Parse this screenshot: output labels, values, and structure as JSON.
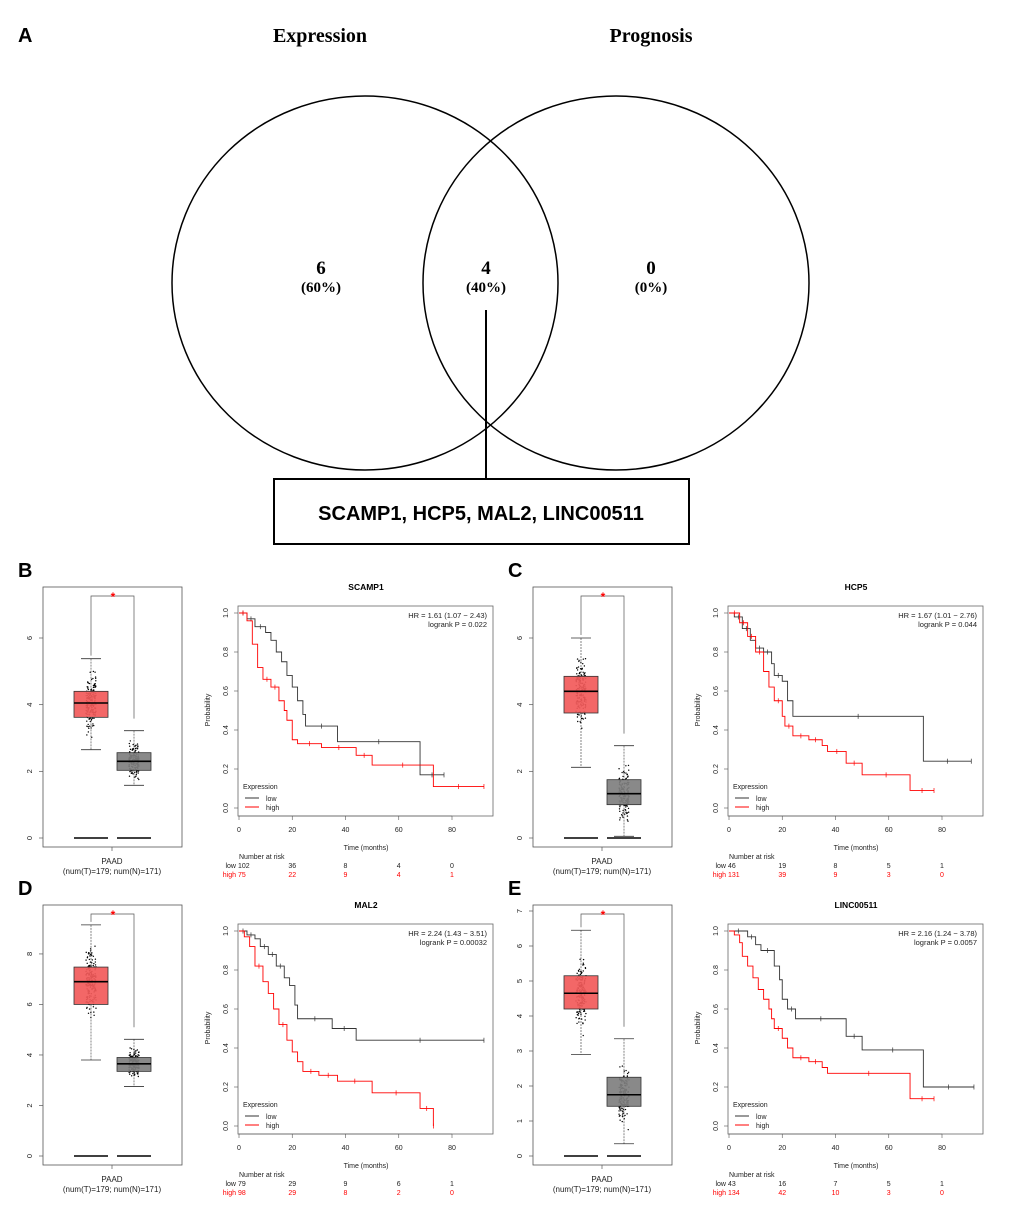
{
  "panel_labels": {
    "a": "A",
    "b": "B",
    "c": "C",
    "d": "D",
    "e": "E"
  },
  "venn": {
    "set_labels": [
      "Expression",
      "Prognosis"
    ],
    "regions": [
      {
        "count": "6",
        "percent": "(60%)"
      },
      {
        "count": "4",
        "percent": "(40%)"
      },
      {
        "count": "0",
        "percent": "(0%)"
      }
    ],
    "intersection_genes": "SCAMP1, HCP5, MAL2, LINC00511"
  },
  "colors": {
    "tumor": "#f25a5a",
    "normal": "#7f7f7f",
    "high": "#ff0000",
    "low": "#333333",
    "significance": "#ff0000"
  },
  "chart_data": [
    {
      "panel": "B",
      "boxplot": {
        "type": "box",
        "category": "PAAD",
        "sample_sizes": "(num(T)=179; num(N)=171)",
        "significance": "*",
        "ylim": [
          0,
          7.35
        ],
        "yticks": [
          "0",
          "2",
          "4",
          "6"
        ],
        "tumor": {
          "q1": 3.62,
          "median": 4.05,
          "q3": 4.4,
          "whisker_low": 2.65,
          "whisker_high": 5.38,
          "n": 179
        },
        "normal": {
          "q1": 2.03,
          "median": 2.3,
          "q3": 2.56,
          "whisker_low": 1.58,
          "whisker_high": 3.22,
          "n": 171
        }
      },
      "km": {
        "type": "line",
        "title": "SCAMP1",
        "hr": "HR = 1.61 (1.07 − 2.43)",
        "logrank": "logrank P = 0.022",
        "xlabel": "Time (months)",
        "ylabel": "Probability",
        "xlim": [
          0,
          95
        ],
        "ylim": [
          0,
          1
        ],
        "xticks": [
          "0",
          "20",
          "40",
          "60",
          "80"
        ],
        "yticks": [
          "0.0",
          "0.2",
          "0.4",
          "0.6",
          "0.8",
          "1.0"
        ],
        "legend_title": "Expression",
        "legend": [
          "low",
          "high"
        ],
        "low": {
          "steps": [
            [
              0,
              1
            ],
            [
              3,
              0.97
            ],
            [
              6,
              0.93
            ],
            [
              10,
              0.9
            ],
            [
              12,
              0.86
            ],
            [
              14,
              0.8
            ],
            [
              16,
              0.75
            ],
            [
              18,
              0.68
            ],
            [
              20,
              0.62
            ],
            [
              22,
              0.55
            ],
            [
              24,
              0.48
            ],
            [
              25,
              0.42
            ],
            [
              37,
              0.34
            ],
            [
              68,
              0.17
            ]
          ],
          "end": 77
        },
        "high": {
          "steps": [
            [
              0,
              1
            ],
            [
              3,
              0.96
            ],
            [
              5,
              0.84
            ],
            [
              7,
              0.72
            ],
            [
              9,
              0.66
            ],
            [
              12,
              0.62
            ],
            [
              15,
              0.55
            ],
            [
              17,
              0.5
            ],
            [
              18,
              0.45
            ],
            [
              20,
              0.35
            ],
            [
              22,
              0.33
            ],
            [
              31,
              0.31
            ],
            [
              44,
              0.27
            ],
            [
              50,
              0.22
            ],
            [
              73,
              0.11
            ]
          ],
          "end": 92
        },
        "risk_title": "Number at risk",
        "risk_labels": [
          "low",
          "high"
        ],
        "risk_low": [
          "102",
          "36",
          "8",
          "4",
          "0"
        ],
        "risk_high": [
          "75",
          "22",
          "9",
          "4",
          "1"
        ]
      }
    },
    {
      "panel": "C",
      "boxplot": {
        "type": "box",
        "category": "PAAD",
        "sample_sizes": "(num(T)=179; num(N)=171)",
        "significance": "*",
        "ylim": [
          0,
          7.35
        ],
        "yticks": [
          "0",
          "2",
          "4",
          "6"
        ],
        "tumor": {
          "q1": 3.75,
          "median": 4.4,
          "q3": 4.85,
          "whisker_low": 2.12,
          "whisker_high": 6.0,
          "n": 179
        },
        "normal": {
          "q1": 1.0,
          "median": 1.33,
          "q3": 1.75,
          "whisker_low": 0.05,
          "whisker_high": 2.77,
          "n": 171
        }
      },
      "km": {
        "type": "line",
        "title": "HCP5",
        "hr": "HR = 1.67 (1.01 − 2.76)",
        "logrank": "logrank P = 0.044",
        "xlabel": "Time (months)",
        "ylabel": "Probability",
        "xlim": [
          0,
          95
        ],
        "ylim": [
          0,
          1
        ],
        "xticks": [
          "0",
          "20",
          "40",
          "60",
          "80"
        ],
        "yticks": [
          "0.0",
          "0.2",
          "0.4",
          "0.6",
          "0.8",
          "1.0"
        ],
        "legend_title": "Expression",
        "legend": [
          "low",
          "high"
        ],
        "low": {
          "steps": [
            [
              0,
              1
            ],
            [
              2,
              0.98
            ],
            [
              5,
              0.92
            ],
            [
              8,
              0.86
            ],
            [
              10,
              0.82
            ],
            [
              13,
              0.8
            ],
            [
              16,
              0.74
            ],
            [
              17,
              0.68
            ],
            [
              20,
              0.65
            ],
            [
              22,
              0.55
            ],
            [
              24,
              0.47
            ],
            [
              73,
              0.24
            ]
          ],
          "end": 91
        },
        "high": {
          "steps": [
            [
              0,
              1
            ],
            [
              4,
              0.95
            ],
            [
              7,
              0.88
            ],
            [
              10,
              0.8
            ],
            [
              13,
              0.7
            ],
            [
              15,
              0.62
            ],
            [
              17,
              0.55
            ],
            [
              20,
              0.47
            ],
            [
              21,
              0.42
            ],
            [
              24,
              0.37
            ],
            [
              30,
              0.35
            ],
            [
              35,
              0.32
            ],
            [
              37,
              0.29
            ],
            [
              44,
              0.23
            ],
            [
              50,
              0.17
            ],
            [
              68,
              0.09
            ]
          ],
          "end": 77
        },
        "risk_title": "Number at risk",
        "risk_labels": [
          "low",
          "high"
        ],
        "risk_low": [
          "46",
          "19",
          "8",
          "5",
          "1"
        ],
        "risk_high": [
          "131",
          "39",
          "9",
          "3",
          "0"
        ]
      }
    },
    {
      "panel": "D",
      "boxplot": {
        "type": "box",
        "category": "PAAD",
        "sample_sizes": "(num(T)=179; num(N)=171)",
        "significance": "*",
        "ylim": [
          0,
          9.7
        ],
        "yticks": [
          "0",
          "2",
          "4",
          "6",
          "8"
        ],
        "tumor": {
          "q1": 6.0,
          "median": 6.9,
          "q3": 7.48,
          "whisker_low": 3.8,
          "whisker_high": 9.15,
          "n": 179
        },
        "normal": {
          "q1": 3.35,
          "median": 3.65,
          "q3": 3.9,
          "whisker_low": 2.75,
          "whisker_high": 4.62,
          "n": 171
        }
      },
      "km": {
        "type": "line",
        "title": "MAL2",
        "hr": "HR = 2.24 (1.43 − 3.51)",
        "logrank": "logrank P = 0.00032",
        "xlabel": "Time (months)",
        "ylabel": "Probability",
        "xlim": [
          0,
          95
        ],
        "ylim": [
          0,
          1
        ],
        "xticks": [
          "0",
          "20",
          "40",
          "60",
          "80"
        ],
        "yticks": [
          "0.0",
          "0.2",
          "0.4",
          "0.6",
          "0.8",
          "1.0"
        ],
        "legend_title": "Expression",
        "legend": [
          "low",
          "high"
        ],
        "low": {
          "steps": [
            [
              0,
              1
            ],
            [
              3,
              0.98
            ],
            [
              6,
              0.96
            ],
            [
              8,
              0.92
            ],
            [
              11,
              0.88
            ],
            [
              14,
              0.82
            ],
            [
              17,
              0.76
            ],
            [
              19,
              0.72
            ],
            [
              21,
              0.62
            ],
            [
              22,
              0.55
            ],
            [
              35,
              0.5
            ],
            [
              44,
              0.44
            ]
          ],
          "end": 92
        },
        "high": {
          "steps": [
            [
              0,
              1
            ],
            [
              2,
              0.97
            ],
            [
              4,
              0.92
            ],
            [
              6,
              0.82
            ],
            [
              9,
              0.74
            ],
            [
              11,
              0.68
            ],
            [
              13,
              0.6
            ],
            [
              15,
              0.52
            ],
            [
              18,
              0.44
            ],
            [
              20,
              0.38
            ],
            [
              22,
              0.33
            ],
            [
              24,
              0.28
            ],
            [
              30,
              0.26
            ],
            [
              37,
              0.23
            ],
            [
              50,
              0.17
            ],
            [
              68,
              0.09
            ],
            [
              73,
              0.0
            ]
          ],
          "end": 73
        },
        "risk_title": "Number at risk",
        "risk_labels": [
          "low",
          "high"
        ],
        "risk_low": [
          "79",
          "29",
          "9",
          "6",
          "1"
        ],
        "risk_high": [
          "98",
          "29",
          "8",
          "2",
          "0"
        ]
      }
    },
    {
      "panel": "E",
      "boxplot": {
        "type": "box",
        "category": "PAAD",
        "sample_sizes": "(num(T)=179; num(N)=171)",
        "significance": "*",
        "ylim": [
          0,
          7.0
        ],
        "yticks": [
          "0",
          "1",
          "2",
          "3",
          "4",
          "5",
          "6",
          "7"
        ],
        "tumor": {
          "q1": 4.2,
          "median": 4.65,
          "q3": 5.15,
          "whisker_low": 2.9,
          "whisker_high": 6.45,
          "n": 179
        },
        "normal": {
          "q1": 1.42,
          "median": 1.75,
          "q3": 2.25,
          "whisker_low": 0.35,
          "whisker_high": 3.35,
          "n": 171
        }
      },
      "km": {
        "type": "line",
        "title": "LINC00511",
        "hr": "HR = 2.16 (1.24 − 3.78)",
        "logrank": "logrank P = 0.0057",
        "xlabel": "Time (months)",
        "ylabel": "Probability",
        "xlim": [
          0,
          95
        ],
        "ylim": [
          0,
          1
        ],
        "xticks": [
          "0",
          "20",
          "40",
          "60",
          "80"
        ],
        "yticks": [
          "0.0",
          "0.2",
          "0.4",
          "0.6",
          "0.8",
          "1.0"
        ],
        "legend_title": "Expression",
        "legend": [
          "low",
          "high"
        ],
        "low": {
          "steps": [
            [
              0,
              1
            ],
            [
              7,
              0.97
            ],
            [
              10,
              0.93
            ],
            [
              12,
              0.9
            ],
            [
              17,
              0.82
            ],
            [
              19,
              0.75
            ],
            [
              20,
              0.65
            ],
            [
              22,
              0.6
            ],
            [
              25,
              0.55
            ],
            [
              44,
              0.46
            ],
            [
              50,
              0.39
            ],
            [
              73,
              0.2
            ]
          ],
          "end": 92
        },
        "high": {
          "steps": [
            [
              0,
              1
            ],
            [
              2,
              0.98
            ],
            [
              4,
              0.94
            ],
            [
              5,
              0.87
            ],
            [
              7,
              0.82
            ],
            [
              9,
              0.76
            ],
            [
              11,
              0.7
            ],
            [
              13,
              0.65
            ],
            [
              15,
              0.6
            ],
            [
              16,
              0.55
            ],
            [
              17,
              0.5
            ],
            [
              20,
              0.45
            ],
            [
              22,
              0.4
            ],
            [
              24,
              0.35
            ],
            [
              30,
              0.33
            ],
            [
              35,
              0.3
            ],
            [
              37,
              0.27
            ],
            [
              68,
              0.14
            ]
          ],
          "end": 77
        },
        "risk_title": "Number at risk",
        "risk_labels": [
          "low",
          "high"
        ],
        "risk_low": [
          "43",
          "16",
          "7",
          "5",
          "1"
        ],
        "risk_high": [
          "134",
          "42",
          "10",
          "3",
          "0"
        ]
      }
    }
  ]
}
